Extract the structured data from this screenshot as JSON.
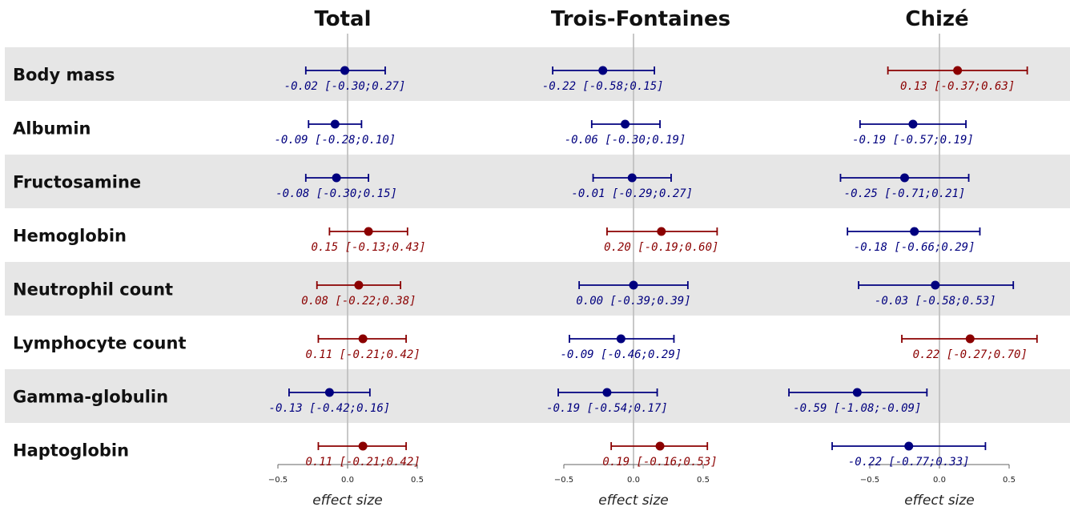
{
  "chart_data": {
    "type": "forest",
    "xlabel": "effect size",
    "xticks": [
      -0.5,
      0.0,
      0.5
    ],
    "xtick_labels": [
      "−0.5",
      "0.0",
      "0.5"
    ],
    "colors": {
      "positive": "#8b0000",
      "negative": "#00007f",
      "zero_line": "#bbbbbb",
      "band": "#e6e6e6"
    },
    "rows": [
      "Body mass",
      "Albumin",
      "Fructosamine",
      "Hemoglobin",
      "Neutrophil count",
      "Lymphocyte count",
      "Gamma-globulin",
      "Haptoglobin"
    ],
    "panels": [
      {
        "title": "Total",
        "estimates": [
          {
            "est": -0.02,
            "lo": -0.3,
            "hi": 0.27,
            "label": "-0.02 [-0.30;0.27]"
          },
          {
            "est": -0.09,
            "lo": -0.28,
            "hi": 0.1,
            "label": "-0.09 [-0.28;0.10]"
          },
          {
            "est": -0.08,
            "lo": -0.3,
            "hi": 0.15,
            "label": "-0.08 [-0.30;0.15]"
          },
          {
            "est": 0.15,
            "lo": -0.13,
            "hi": 0.43,
            "label": "0.15 [-0.13;0.43]"
          },
          {
            "est": 0.08,
            "lo": -0.22,
            "hi": 0.38,
            "label": "0.08 [-0.22;0.38]"
          },
          {
            "est": 0.11,
            "lo": -0.21,
            "hi": 0.42,
            "label": "0.11 [-0.21;0.42]"
          },
          {
            "est": -0.13,
            "lo": -0.42,
            "hi": 0.16,
            "label": "-0.13 [-0.42;0.16]"
          },
          {
            "est": 0.11,
            "lo": -0.21,
            "hi": 0.42,
            "label": "0.11 [-0.21;0.42]"
          }
        ]
      },
      {
        "title": "Trois-Fontaines",
        "estimates": [
          {
            "est": -0.22,
            "lo": -0.58,
            "hi": 0.15,
            "label": "-0.22 [-0.58;0.15]"
          },
          {
            "est": -0.06,
            "lo": -0.3,
            "hi": 0.19,
            "label": "-0.06 [-0.30;0.19]"
          },
          {
            "est": -0.01,
            "lo": -0.29,
            "hi": 0.27,
            "label": "-0.01 [-0.29;0.27]"
          },
          {
            "est": 0.2,
            "lo": -0.19,
            "hi": 0.6,
            "label": "0.20 [-0.19;0.60]"
          },
          {
            "est": 0.0,
            "lo": -0.39,
            "hi": 0.39,
            "label": "0.00 [-0.39;0.39]"
          },
          {
            "est": -0.09,
            "lo": -0.46,
            "hi": 0.29,
            "label": "-0.09 [-0.46;0.29]"
          },
          {
            "est": -0.19,
            "lo": -0.54,
            "hi": 0.17,
            "label": "-0.19 [-0.54;0.17]"
          },
          {
            "est": 0.19,
            "lo": -0.16,
            "hi": 0.53,
            "label": "0.19 [-0.16;0.53]"
          }
        ]
      },
      {
        "title": "Chizé",
        "estimates": [
          {
            "est": 0.13,
            "lo": -0.37,
            "hi": 0.63,
            "label": "0.13 [-0.37;0.63]"
          },
          {
            "est": -0.19,
            "lo": -0.57,
            "hi": 0.19,
            "label": "-0.19 [-0.57;0.19]"
          },
          {
            "est": -0.25,
            "lo": -0.71,
            "hi": 0.21,
            "label": "-0.25 [-0.71;0.21]"
          },
          {
            "est": -0.18,
            "lo": -0.66,
            "hi": 0.29,
            "label": "-0.18 [-0.66;0.29]"
          },
          {
            "est": -0.03,
            "lo": -0.58,
            "hi": 0.53,
            "label": "-0.03 [-0.58;0.53]"
          },
          {
            "est": 0.22,
            "lo": -0.27,
            "hi": 0.7,
            "label": "0.22 [-0.27;0.70]"
          },
          {
            "est": -0.59,
            "lo": -1.08,
            "hi": -0.09,
            "label": "-0.59 [-1.08;-0.09]"
          },
          {
            "est": -0.22,
            "lo": -0.77,
            "hi": 0.33,
            "label": "-0.22 [-0.77;0.33]"
          }
        ]
      }
    ]
  }
}
